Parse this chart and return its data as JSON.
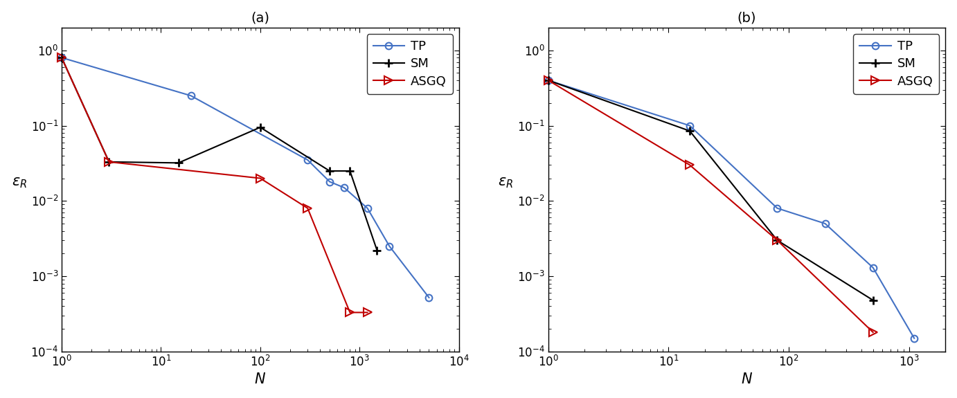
{
  "panel_a": {
    "title": "(a)",
    "TP": {
      "x": [
        1,
        20,
        300,
        500,
        700,
        1200,
        2000,
        5000
      ],
      "y": [
        0.8,
        0.25,
        0.035,
        0.018,
        0.015,
        0.008,
        0.0025,
        0.00052
      ],
      "color": "#4472c4",
      "marker": "o",
      "label": "TP"
    },
    "SM": {
      "x": [
        1,
        3,
        15,
        100,
        500,
        800,
        1500
      ],
      "y": [
        0.8,
        0.033,
        0.032,
        0.095,
        0.025,
        0.025,
        0.0022
      ],
      "color": "#000000",
      "marker": "+",
      "label": "SM"
    },
    "ASGQ": {
      "x": [
        1,
        3,
        100,
        300,
        800,
        1200
      ],
      "y": [
        0.8,
        0.033,
        0.02,
        0.008,
        0.00033,
        0.00033
      ],
      "color": "#c00000",
      "marker": ">",
      "label": "ASGQ"
    },
    "xlim": [
      1,
      10000
    ],
    "ylim": [
      0.0001,
      2
    ],
    "xlabel": "N",
    "ylabel": "epsilon_R"
  },
  "panel_b": {
    "title": "(b)",
    "TP": {
      "x": [
        1,
        15,
        80,
        200,
        500,
        1100
      ],
      "y": [
        0.4,
        0.1,
        0.008,
        0.005,
        0.0013,
        0.00015
      ],
      "color": "#4472c4",
      "marker": "o",
      "label": "TP"
    },
    "SM": {
      "x": [
        1,
        15,
        80,
        500
      ],
      "y": [
        0.4,
        0.085,
        0.003,
        0.00048
      ],
      "color": "#000000",
      "marker": "+",
      "label": "SM"
    },
    "ASGQ": {
      "x": [
        1,
        15,
        80,
        500
      ],
      "y": [
        0.4,
        0.03,
        0.003,
        0.00018
      ],
      "color": "#c00000",
      "marker": ">",
      "label": "ASGQ"
    },
    "xlim": [
      1,
      2000
    ],
    "ylim": [
      0.0001,
      2
    ],
    "xlabel": "N",
    "ylabel": "epsilon_R"
  }
}
